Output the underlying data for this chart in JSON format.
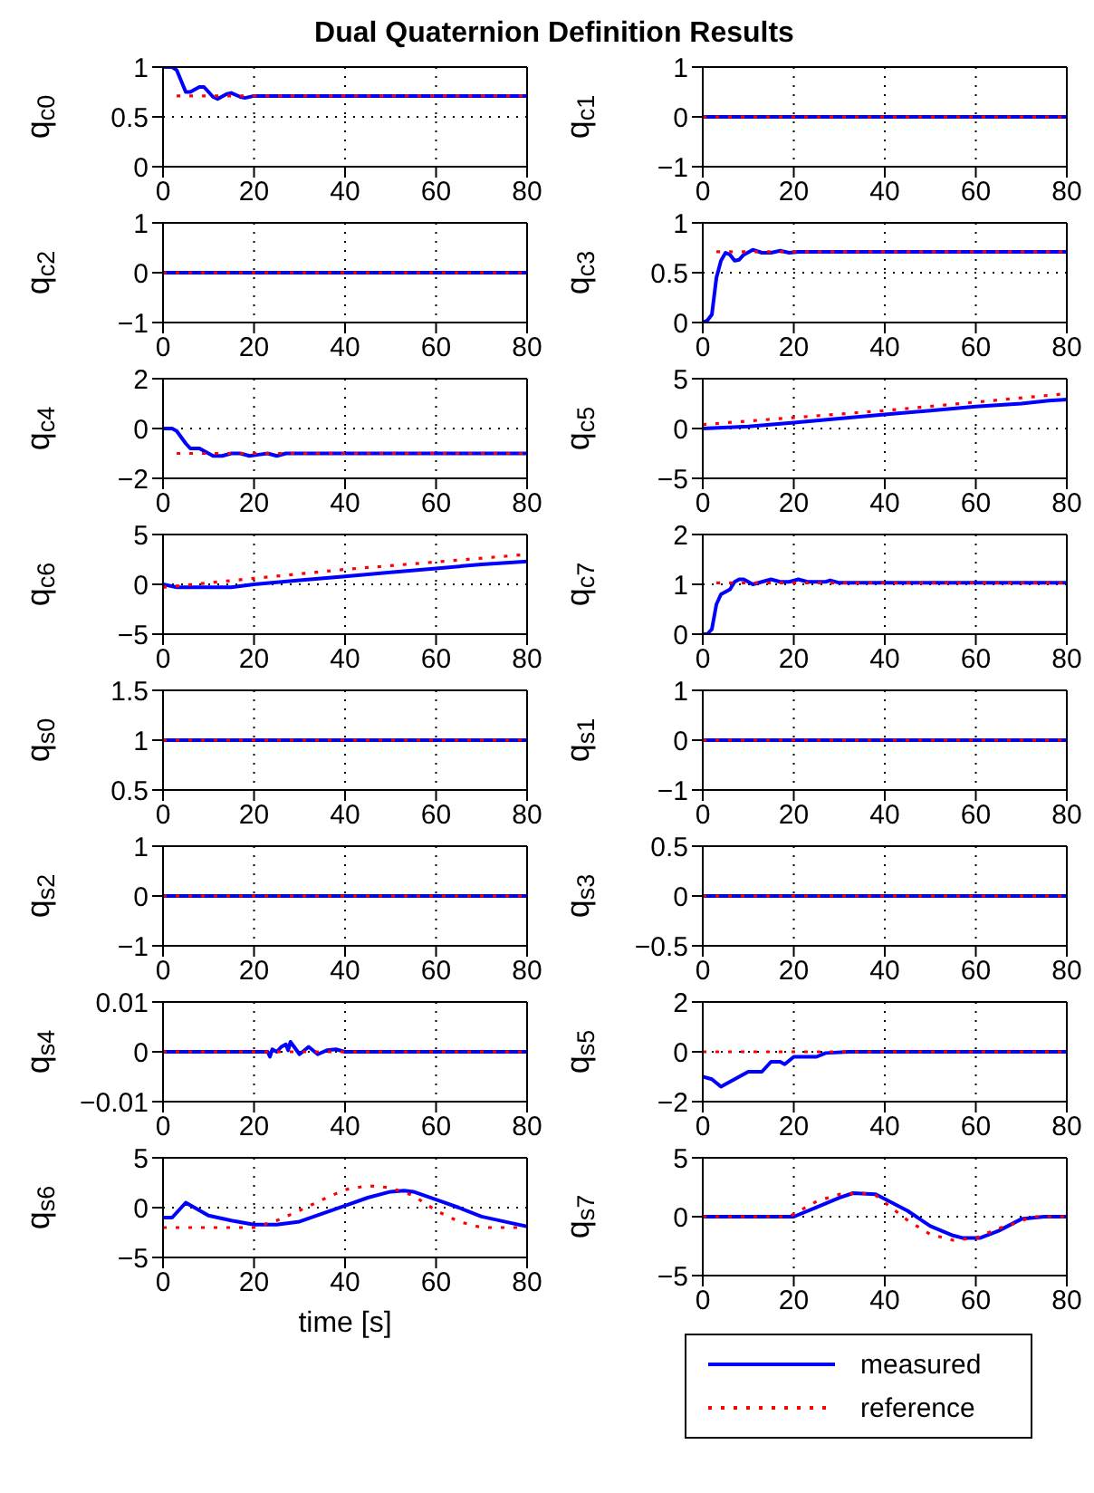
{
  "chart_data": [
    {
      "type": "line",
      "title": "Dual Quaternion Definition Results",
      "ylabel": "q$_{c0}$",
      "xlim": [
        0,
        80
      ],
      "xticks": [
        0,
        20,
        40,
        60,
        80
      ],
      "ylim": [
        0,
        1
      ],
      "yticks": [
        0,
        0.5,
        1
      ],
      "grid": true,
      "series": [
        {
          "color": "#0000ff",
          "line_style": "solid",
          "x": [
            0,
            2,
            3,
            5,
            6,
            8,
            9,
            11,
            12,
            14,
            15,
            17,
            18,
            20,
            80
          ],
          "values": [
            1,
            1,
            0.97,
            0.75,
            0.75,
            0.8,
            0.8,
            0.7,
            0.68,
            0.73,
            0.74,
            0.7,
            0.69,
            0.71,
            0.71
          ]
        },
        {
          "color": "#ff0000",
          "line_style": "dotted",
          "x": [
            3,
            80
          ],
          "values": [
            0.71,
            0.71
          ]
        }
      ]
    },
    {
      "type": "line",
      "ylabel": "q$_{c1}$",
      "xlim": [
        0,
        80
      ],
      "xticks": [
        0,
        20,
        40,
        60,
        80
      ],
      "ylim": [
        -1,
        1
      ],
      "yticks": [
        -1,
        0,
        1
      ],
      "grid": true,
      "series": [
        {
          "color": "#0000ff",
          "line_style": "solid",
          "x": [
            0,
            80
          ],
          "values": [
            0,
            0
          ]
        },
        {
          "color": "#ff0000",
          "line_style": "dotted",
          "x": [
            0,
            80
          ],
          "values": [
            0,
            0
          ]
        }
      ]
    },
    {
      "type": "line",
      "ylabel": "q$_{c2}$",
      "xlim": [
        0,
        80
      ],
      "xticks": [
        0,
        20,
        40,
        60,
        80
      ],
      "ylim": [
        -1,
        1
      ],
      "yticks": [
        -1,
        0,
        1
      ],
      "grid": true,
      "series": [
        {
          "color": "#0000ff",
          "line_style": "solid",
          "x": [
            0,
            80
          ],
          "values": [
            0,
            0
          ]
        },
        {
          "color": "#ff0000",
          "line_style": "dotted",
          "x": [
            0,
            80
          ],
          "values": [
            0,
            0
          ]
        }
      ]
    },
    {
      "type": "line",
      "ylabel": "q$_{c3}$",
      "xlim": [
        0,
        80
      ],
      "xticks": [
        0,
        20,
        40,
        60,
        80
      ],
      "ylim": [
        0,
        1
      ],
      "yticks": [
        0,
        0.5,
        1
      ],
      "grid": true,
      "series": [
        {
          "color": "#0000ff",
          "line_style": "solid",
          "x": [
            0,
            1,
            2,
            3,
            4,
            5,
            6,
            7,
            8,
            9,
            11,
            13,
            15,
            17,
            19,
            21,
            80
          ],
          "values": [
            0,
            0.02,
            0.08,
            0.45,
            0.62,
            0.7,
            0.68,
            0.62,
            0.63,
            0.68,
            0.73,
            0.7,
            0.7,
            0.72,
            0.7,
            0.71,
            0.71
          ]
        },
        {
          "color": "#ff0000",
          "line_style": "dotted",
          "x": [
            3,
            80
          ],
          "values": [
            0.71,
            0.71
          ]
        }
      ]
    },
    {
      "type": "line",
      "ylabel": "q$_{c4}$",
      "xlim": [
        0,
        80
      ],
      "xticks": [
        0,
        20,
        40,
        60,
        80
      ],
      "ylim": [
        -2,
        2
      ],
      "yticks": [
        -2,
        0,
        2
      ],
      "grid": true,
      "series": [
        {
          "color": "#0000ff",
          "line_style": "solid",
          "x": [
            0,
            2,
            3,
            5,
            6,
            8,
            10,
            11,
            13,
            15,
            17,
            19,
            21,
            23,
            25,
            27,
            29,
            31,
            80
          ],
          "values": [
            0,
            0,
            -0.1,
            -0.6,
            -0.8,
            -0.8,
            -1.0,
            -1.1,
            -1.1,
            -1,
            -1,
            -1.1,
            -1.05,
            -1,
            -1.1,
            -1,
            -1,
            -1,
            -1
          ]
        },
        {
          "color": "#ff0000",
          "line_style": "dotted",
          "x": [
            3,
            80
          ],
          "values": [
            -1,
            -1
          ]
        }
      ]
    },
    {
      "type": "line",
      "ylabel": "q$_{c5}$",
      "xlim": [
        0,
        80
      ],
      "xticks": [
        0,
        20,
        40,
        60,
        80
      ],
      "ylim": [
        -5,
        5
      ],
      "yticks": [
        -5,
        0,
        5
      ],
      "grid": true,
      "series": [
        {
          "color": "#0000ff",
          "line_style": "solid",
          "x": [
            0,
            10,
            20,
            30,
            40,
            50,
            60,
            70,
            76,
            80
          ],
          "values": [
            0,
            0.2,
            0.6,
            1.0,
            1.4,
            1.8,
            2.2,
            2.5,
            2.8,
            2.9
          ]
        },
        {
          "color": "#ff0000",
          "line_style": "dotted",
          "x": [
            0,
            40,
            80
          ],
          "values": [
            0.4,
            1.8,
            3.5
          ]
        }
      ]
    },
    {
      "type": "line",
      "ylabel": "q$_{c6}$",
      "xlim": [
        0,
        80
      ],
      "xticks": [
        0,
        20,
        40,
        60,
        80
      ],
      "ylim": [
        -5,
        5
      ],
      "yticks": [
        -5,
        0,
        5
      ],
      "grid": true,
      "series": [
        {
          "color": "#0000ff",
          "line_style": "solid",
          "x": [
            0,
            3,
            15,
            20,
            30,
            40,
            50,
            60,
            70,
            80
          ],
          "values": [
            0,
            -0.3,
            -0.3,
            0,
            0.4,
            0.8,
            1.2,
            1.6,
            2.0,
            2.3
          ]
        },
        {
          "color": "#ff0000",
          "line_style": "dotted",
          "x": [
            0,
            40,
            80
          ],
          "values": [
            -0.3,
            1.5,
            3.0
          ]
        }
      ]
    },
    {
      "type": "line",
      "ylabel": "q$_{c7}$",
      "xlim": [
        0,
        80
      ],
      "xticks": [
        0,
        20,
        40,
        60,
        80
      ],
      "ylim": [
        0,
        2
      ],
      "yticks": [
        0,
        1,
        2
      ],
      "grid": true,
      "series": [
        {
          "color": "#0000ff",
          "line_style": "solid",
          "x": [
            0,
            1,
            2,
            3,
            4,
            5,
            6,
            7,
            8,
            9,
            10,
            11,
            13,
            15,
            17,
            19,
            21,
            23,
            25,
            27,
            28,
            30,
            80
          ],
          "values": [
            0,
            0,
            0.1,
            0.6,
            0.8,
            0.85,
            0.9,
            1.05,
            1.1,
            1.1,
            1.05,
            1,
            1.05,
            1.1,
            1.05,
            1.05,
            1.1,
            1.05,
            1.05,
            1.05,
            1.08,
            1.03,
            1.03
          ]
        },
        {
          "color": "#ff0000",
          "line_style": "dotted",
          "x": [
            3,
            80
          ],
          "values": [
            1.03,
            1.03
          ]
        }
      ]
    },
    {
      "type": "line",
      "ylabel": "q$_{s0}$",
      "xlim": [
        0,
        80
      ],
      "xticks": [
        0,
        20,
        40,
        60,
        80
      ],
      "ylim": [
        0.5,
        1.5
      ],
      "yticks": [
        0.5,
        1,
        1.5
      ],
      "grid": true,
      "series": [
        {
          "color": "#0000ff",
          "line_style": "solid",
          "x": [
            0,
            80
          ],
          "values": [
            1,
            1
          ]
        },
        {
          "color": "#ff0000",
          "line_style": "dotted",
          "x": [
            0,
            80
          ],
          "values": [
            1,
            1
          ]
        }
      ]
    },
    {
      "type": "line",
      "ylabel": "q$_{s1}$",
      "xlim": [
        0,
        80
      ],
      "xticks": [
        0,
        20,
        40,
        60,
        80
      ],
      "ylim": [
        -1,
        1
      ],
      "yticks": [
        -1,
        0,
        1
      ],
      "grid": true,
      "series": [
        {
          "color": "#0000ff",
          "line_style": "solid",
          "x": [
            0,
            80
          ],
          "values": [
            0,
            0
          ]
        },
        {
          "color": "#ff0000",
          "line_style": "dotted",
          "x": [
            0,
            80
          ],
          "values": [
            0,
            0
          ]
        }
      ]
    },
    {
      "type": "line",
      "ylabel": "q$_{s2}$",
      "xlim": [
        0,
        80
      ],
      "xticks": [
        0,
        20,
        40,
        60,
        80
      ],
      "ylim": [
        -1,
        1
      ],
      "yticks": [
        -1,
        0,
        1
      ],
      "grid": true,
      "series": [
        {
          "color": "#0000ff",
          "line_style": "solid",
          "x": [
            0,
            80
          ],
          "values": [
            0,
            0
          ]
        },
        {
          "color": "#ff0000",
          "line_style": "dotted",
          "x": [
            0,
            80
          ],
          "values": [
            0,
            0
          ]
        }
      ]
    },
    {
      "type": "line",
      "ylabel": "q$_{s3}$",
      "xlim": [
        0,
        80
      ],
      "xticks": [
        0,
        20,
        40,
        60,
        80
      ],
      "ylim": [
        -0.5,
        0.5
      ],
      "yticks": [
        -0.5,
        0,
        0.5
      ],
      "grid": true,
      "series": [
        {
          "color": "#0000ff",
          "line_style": "solid",
          "x": [
            0,
            80
          ],
          "values": [
            0,
            0
          ]
        },
        {
          "color": "#ff0000",
          "line_style": "dotted",
          "x": [
            0,
            80
          ],
          "values": [
            0,
            0
          ]
        }
      ]
    },
    {
      "type": "line",
      "ylabel": "q$_{s4}$",
      "xlim": [
        0,
        80
      ],
      "xticks": [
        0,
        20,
        40,
        60,
        80
      ],
      "ylim": [
        -0.01,
        0.01
      ],
      "yticks": [
        -0.01,
        0,
        0.01
      ],
      "grid": true,
      "series": [
        {
          "color": "#0000ff",
          "line_style": "solid",
          "x": [
            0,
            23,
            23.5,
            24,
            25,
            26,
            27,
            27.5,
            28,
            30,
            32,
            34,
            36,
            38,
            40,
            80
          ],
          "values": [
            0,
            0,
            -0.001,
            0.0005,
            0,
            0.001,
            0.0015,
            0.0003,
            0.002,
            -0.0005,
            0.001,
            -0.0005,
            0.0003,
            0.0005,
            0,
            0
          ]
        },
        {
          "color": "#ff0000",
          "line_style": "dotted",
          "x": [
            0,
            80
          ],
          "values": [
            0,
            0
          ]
        }
      ]
    },
    {
      "type": "line",
      "ylabel": "q$_{s5}$",
      "xlim": [
        0,
        80
      ],
      "xticks": [
        0,
        20,
        40,
        60,
        80
      ],
      "ylim": [
        -2,
        2
      ],
      "yticks": [
        -2,
        0,
        2
      ],
      "grid": true,
      "series": [
        {
          "color": "#0000ff",
          "line_style": "solid",
          "x": [
            0,
            2,
            4,
            6,
            8,
            10,
            13,
            15,
            17,
            18,
            20,
            22,
            25,
            27,
            32,
            80
          ],
          "values": [
            -1,
            -1.1,
            -1.4,
            -1.2,
            -1,
            -0.8,
            -0.8,
            -0.4,
            -0.4,
            -0.5,
            -0.2,
            -0.2,
            -0.2,
            -0.05,
            0,
            0
          ]
        },
        {
          "color": "#ff0000",
          "line_style": "dotted",
          "x": [
            0,
            80
          ],
          "values": [
            0,
            0
          ]
        }
      ]
    },
    {
      "type": "line",
      "ylabel": "q$_{s6}$",
      "xlabel": "time [s]",
      "xlim": [
        0,
        80
      ],
      "xticks": [
        0,
        20,
        40,
        60,
        80
      ],
      "ylim": [
        -5,
        5
      ],
      "yticks": [
        -5,
        0,
        5
      ],
      "grid": true,
      "series": [
        {
          "color": "#0000ff",
          "line_style": "solid",
          "x": [
            0,
            2,
            5,
            10,
            15,
            20,
            25,
            30,
            35,
            40,
            45,
            50,
            53,
            55,
            60,
            65,
            70,
            75,
            80
          ],
          "values": [
            -1,
            -1,
            0.5,
            -0.8,
            -1.3,
            -1.7,
            -1.7,
            -1.4,
            -0.6,
            0.2,
            1.0,
            1.6,
            1.7,
            1.6,
            0.8,
            0,
            -0.9,
            -1.4,
            -1.9
          ]
        },
        {
          "color": "#ff0000",
          "line_style": "dotted",
          "x": [
            0,
            20,
            25,
            30,
            35,
            40,
            45,
            50,
            55,
            60,
            65,
            70,
            75,
            80
          ],
          "values": [
            -2,
            -2,
            -1.3,
            -0.3,
            0.8,
            1.8,
            2.2,
            2.0,
            1.2,
            -0.3,
            -1.4,
            -2.0,
            -2.0,
            -2.0
          ]
        }
      ]
    },
    {
      "type": "line",
      "ylabel": "q$_{s7}$",
      "xlim": [
        0,
        80
      ],
      "xticks": [
        0,
        20,
        40,
        60,
        80
      ],
      "ylim": [
        -5,
        5
      ],
      "yticks": [
        -5,
        0,
        5
      ],
      "grid": true,
      "legend": "bottom",
      "series": [
        {
          "name": "measured",
          "color": "#0000ff",
          "line_style": "solid",
          "x": [
            0,
            20,
            25,
            30,
            33,
            38,
            45,
            50,
            55,
            57,
            61,
            65,
            70,
            75,
            80
          ],
          "values": [
            0,
            0,
            0.8,
            1.6,
            2.0,
            1.9,
            0.5,
            -0.8,
            -1.6,
            -1.8,
            -1.8,
            -1.2,
            -0.2,
            0,
            0
          ]
        },
        {
          "name": "reference",
          "color": "#ff0000",
          "line_style": "dotted",
          "x": [
            0,
            19,
            25,
            30,
            35,
            38,
            40,
            45,
            50,
            55,
            60,
            65,
            70,
            72,
            80
          ],
          "values": [
            0,
            0,
            1.3,
            1.9,
            2.0,
            1.8,
            1.2,
            -0.3,
            -1.5,
            -2,
            -1.8,
            -1.0,
            -0.4,
            0,
            0
          ]
        }
      ]
    }
  ]
}
